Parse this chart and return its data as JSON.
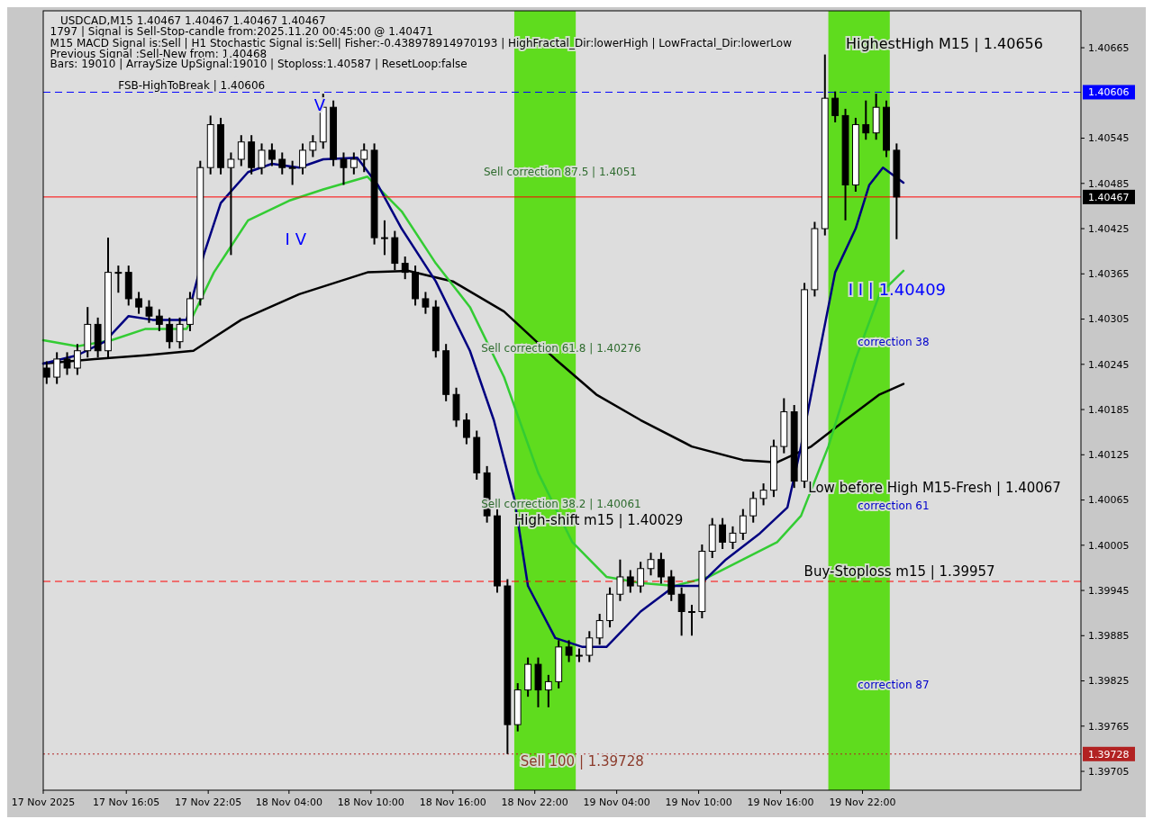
{
  "chart_data": {
    "type": "candlestick",
    "title": "USDCAD,M15  1.40467 1.40467 1.40467 1.40467",
    "color": "#000000",
    "x": [
      "2025-11-17T10:15",
      "2025-11-17T11:00",
      "2025-11-17T11:45",
      "2025-11-17T12:30",
      "2025-11-17T13:15",
      "2025-11-17T14:00",
      "2025-11-17T14:45",
      "2025-11-17T15:30",
      "2025-11-17T16:15",
      "2025-11-17T17:00",
      "2025-11-17T17:45",
      "2025-11-17T18:30",
      "2025-11-17T19:15",
      "2025-11-17T20:00",
      "2025-11-17T20:45",
      "2025-11-17T21:30",
      "2025-11-17T22:15",
      "2025-11-17T23:00",
      "2025-11-17T23:45",
      "2025-11-18T00:30",
      "2025-11-18T01:15",
      "2025-11-18T02:00",
      "2025-11-18T02:45",
      "2025-11-18T03:30",
      "2025-11-18T04:15",
      "2025-11-18T05:00",
      "2025-11-18T05:45",
      "2025-11-18T06:30",
      "2025-11-18T07:15",
      "2025-11-18T08:00",
      "2025-11-18T08:45",
      "2025-11-18T09:30",
      "2025-11-18T10:15",
      "2025-11-18T11:00",
      "2025-11-18T11:45",
      "2025-11-18T12:30",
      "2025-11-18T13:15",
      "2025-11-18T14:00",
      "2025-11-18T14:45",
      "2025-11-18T15:30",
      "2025-11-18T16:15",
      "2025-11-18T17:00",
      "2025-11-18T17:45",
      "2025-11-18T18:30",
      "2025-11-18T19:15",
      "2025-11-18T20:00",
      "2025-11-18T20:45",
      "2025-11-18T21:30",
      "2025-11-18T22:15",
      "2025-11-18T23:00",
      "2025-11-18T23:45",
      "2025-11-19T00:30",
      "2025-11-19T01:15",
      "2025-11-19T02:00",
      "2025-11-19T02:45",
      "2025-11-19T03:30",
      "2025-11-19T04:15",
      "2025-11-19T05:00",
      "2025-11-19T05:45",
      "2025-11-19T06:30",
      "2025-11-19T07:15",
      "2025-11-19T08:00",
      "2025-11-19T08:45",
      "2025-11-19T09:30",
      "2025-11-19T10:15",
      "2025-11-19T11:00",
      "2025-11-19T11:45",
      "2025-11-19T12:30",
      "2025-11-19T13:15",
      "2025-11-19T14:00",
      "2025-11-19T14:45",
      "2025-11-19T15:30",
      "2025-11-19T16:15",
      "2025-11-19T17:00",
      "2025-11-19T17:45",
      "2025-11-19T18:30",
      "2025-11-19T19:15",
      "2025-11-19T20:00",
      "2025-11-19T20:45",
      "2025-11-19T21:30",
      "2025-11-19T22:15",
      "2025-11-19T23:00",
      "2025-11-19T23:45",
      "2025-11-20T00:30"
    ],
    "ohlc": [
      [
        1.4024,
        1.40249,
        1.40219,
        1.40228
      ],
      [
        1.40228,
        1.40261,
        1.40219,
        1.40252
      ],
      [
        1.40252,
        1.40261,
        1.40231,
        1.4024
      ],
      [
        1.4024,
        1.40272,
        1.40231,
        1.40263
      ],
      [
        1.40263,
        1.40321,
        1.40254,
        1.40298
      ],
      [
        1.40298,
        1.40307,
        1.40254,
        1.40263
      ],
      [
        1.40263,
        1.40413,
        1.40254,
        1.40367
      ],
      [
        1.40367,
        1.40376,
        1.4034,
        1.40367
      ],
      [
        1.40367,
        1.40376,
        1.40323,
        1.40332
      ],
      [
        1.40332,
        1.40341,
        1.40312,
        1.40321
      ],
      [
        1.40321,
        1.4033,
        1.403,
        1.40309
      ],
      [
        1.40309,
        1.40318,
        1.40289,
        1.40298
      ],
      [
        1.40298,
        1.40307,
        1.40266,
        1.40275
      ],
      [
        1.40275,
        1.40307,
        1.40266,
        1.40298
      ],
      [
        1.40298,
        1.40341,
        1.40289,
        1.40332
      ],
      [
        1.40332,
        1.40515,
        1.40323,
        1.40506
      ],
      [
        1.40506,
        1.40575,
        1.40497,
        1.40563
      ],
      [
        1.40563,
        1.40572,
        1.40497,
        1.40506
      ],
      [
        1.40506,
        1.40526,
        1.4039,
        1.40517
      ],
      [
        1.40517,
        1.40549,
        1.40508,
        1.4054
      ],
      [
        1.4054,
        1.40549,
        1.40497,
        1.40506
      ],
      [
        1.40506,
        1.40538,
        1.40497,
        1.40529
      ],
      [
        1.40529,
        1.40538,
        1.40508,
        1.40517
      ],
      [
        1.40517,
        1.40526,
        1.40497,
        1.40506
      ],
      [
        1.40506,
        1.40515,
        1.40483,
        1.40506
      ],
      [
        1.40506,
        1.40538,
        1.40497,
        1.40529
      ],
      [
        1.40529,
        1.40549,
        1.4052,
        1.4054
      ],
      [
        1.4054,
        1.40604,
        1.40531,
        1.40586
      ],
      [
        1.40586,
        1.40595,
        1.40508,
        1.40517
      ],
      [
        1.40517,
        1.40526,
        1.40483,
        1.40506
      ],
      [
        1.40506,
        1.40526,
        1.40497,
        1.40517
      ],
      [
        1.40517,
        1.40538,
        1.405,
        1.40529
      ],
      [
        1.40529,
        1.40538,
        1.40404,
        1.40413
      ],
      [
        1.40413,
        1.40436,
        1.4039,
        1.40413
      ],
      [
        1.40413,
        1.40422,
        1.4037,
        1.40379
      ],
      [
        1.40379,
        1.40388,
        1.40358,
        1.40367
      ],
      [
        1.40367,
        1.40376,
        1.40323,
        1.40332
      ],
      [
        1.40332,
        1.40341,
        1.40312,
        1.40321
      ],
      [
        1.40321,
        1.4033,
        1.40254,
        1.40263
      ],
      [
        1.40263,
        1.40272,
        1.40196,
        1.40205
      ],
      [
        1.40205,
        1.40214,
        1.40162,
        1.40171
      ],
      [
        1.40171,
        1.4018,
        1.40139,
        1.40148
      ],
      [
        1.40148,
        1.40157,
        1.40092,
        1.40101
      ],
      [
        1.40101,
        1.4011,
        1.40035,
        1.40044
      ],
      [
        1.40044,
        1.40053,
        1.39942,
        1.39951
      ],
      [
        1.39951,
        1.3996,
        1.39728,
        1.39767
      ],
      [
        1.39767,
        1.39822,
        1.39758,
        1.39813
      ],
      [
        1.39813,
        1.39856,
        1.39804,
        1.39847
      ],
      [
        1.39847,
        1.39856,
        1.3979,
        1.39813
      ],
      [
        1.39813,
        1.39833,
        1.3979,
        1.39824
      ],
      [
        1.39824,
        1.39879,
        1.39815,
        1.3987
      ],
      [
        1.3987,
        1.39879,
        1.3985,
        1.39859
      ],
      [
        1.39859,
        1.39868,
        1.3985,
        1.39859
      ],
      [
        1.39859,
        1.39891,
        1.3985,
        1.39882
      ],
      [
        1.39882,
        1.39914,
        1.39873,
        1.39905
      ],
      [
        1.39905,
        1.39949,
        1.39896,
        1.3994
      ],
      [
        1.3994,
        1.39986,
        1.39931,
        1.39963
      ],
      [
        1.39963,
        1.39972,
        1.39942,
        1.39951
      ],
      [
        1.39951,
        1.39983,
        1.39942,
        1.39974
      ],
      [
        1.39974,
        1.39995,
        1.39965,
        1.39986
      ],
      [
        1.39986,
        1.39995,
        1.39954,
        1.39963
      ],
      [
        1.39963,
        1.39972,
        1.39931,
        1.3994
      ],
      [
        1.3994,
        1.39949,
        1.39885,
        1.39917
      ],
      [
        1.39917,
        1.39926,
        1.39885,
        1.39917
      ],
      [
        1.39917,
        1.40006,
        1.39908,
        1.39997
      ],
      [
        1.39997,
        1.40041,
        1.39988,
        1.40032
      ],
      [
        1.40032,
        1.40041,
        1.4,
        1.40009
      ],
      [
        1.40009,
        1.4003,
        1.4,
        1.40021
      ],
      [
        1.40021,
        1.40053,
        1.40012,
        1.40044
      ],
      [
        1.40044,
        1.40076,
        1.40035,
        1.40067
      ],
      [
        1.40067,
        1.40087,
        1.40058,
        1.40078
      ],
      [
        1.40078,
        1.40145,
        1.40069,
        1.40136
      ],
      [
        1.40136,
        1.402,
        1.40127,
        1.40182
      ],
      [
        1.40182,
        1.40191,
        1.40081,
        1.4009
      ],
      [
        1.4009,
        1.40353,
        1.40081,
        1.40344
      ],
      [
        1.40344,
        1.40434,
        1.40335,
        1.40425
      ],
      [
        1.40425,
        1.40656,
        1.40416,
        1.40598
      ],
      [
        1.40598,
        1.40607,
        1.40566,
        1.40575
      ],
      [
        1.40575,
        1.40584,
        1.40436,
        1.40483
      ],
      [
        1.40483,
        1.40572,
        1.40474,
        1.40563
      ],
      [
        1.40563,
        1.40595,
        1.40543,
        1.40552
      ],
      [
        1.40552,
        1.40604,
        1.40543,
        1.40586
      ],
      [
        1.40586,
        1.40595,
        1.4052,
        1.40529
      ],
      [
        1.40529,
        1.40538,
        1.40411,
        1.40467
      ]
    ],
    "series": [
      {
        "type": "line",
        "color": "#000000",
        "x": [
          "2025-11-17T10:00",
          "2025-11-17T13:45",
          "2025-11-17T17:30",
          "2025-11-17T21:00",
          "2025-11-18T00:30",
          "2025-11-18T04:45",
          "2025-11-18T09:45",
          "2025-11-18T12:45",
          "2025-11-18T16:00",
          "2025-11-18T19:45",
          "2025-11-18T23:30",
          "2025-11-19T02:30",
          "2025-11-19T05:45",
          "2025-11-19T09:30",
          "2025-11-19T13:15",
          "2025-11-19T15:45",
          "2025-11-19T18:15",
          "2025-11-19T20:45",
          "2025-11-19T23:15",
          "2025-11-20T01:00"
        ],
        "values": [
          1.40246,
          1.40252,
          1.40257,
          1.40263,
          1.40304,
          1.40338,
          1.40367,
          1.40369,
          1.40355,
          1.40315,
          1.40252,
          1.40205,
          1.40171,
          1.40136,
          1.40118,
          1.40115,
          1.40136,
          1.40171,
          1.40205,
          1.40219
        ]
      },
      {
        "type": "line",
        "color": "#33cc33",
        "x": [
          "2025-11-17T10:00",
          "2025-11-17T12:30",
          "2025-11-17T15:00",
          "2025-11-17T17:30",
          "2025-11-17T20:30",
          "2025-11-17T22:30",
          "2025-11-18T01:00",
          "2025-11-18T04:00",
          "2025-11-18T06:30",
          "2025-11-18T09:45",
          "2025-11-18T12:15",
          "2025-11-18T14:45",
          "2025-11-18T17:15",
          "2025-11-18T19:45",
          "2025-11-18T22:15",
          "2025-11-19T00:45",
          "2025-11-19T03:15",
          "2025-11-19T05:45",
          "2025-11-19T08:15",
          "2025-11-19T10:45",
          "2025-11-19T13:15",
          "2025-11-19T15:45",
          "2025-11-19T17:30",
          "2025-11-19T19:30",
          "2025-11-19T21:30",
          "2025-11-19T23:15",
          "2025-11-20T01:00"
        ],
        "values": [
          1.40277,
          1.40269,
          1.40277,
          1.40292,
          1.40292,
          1.40367,
          1.40436,
          1.40462,
          1.40477,
          1.40494,
          1.40448,
          1.40379,
          1.40321,
          1.40228,
          1.40101,
          1.40009,
          1.39963,
          1.39955,
          1.39951,
          1.39963,
          1.39986,
          1.40009,
          1.40044,
          1.40136,
          1.40252,
          1.40338,
          1.40369
        ]
      },
      {
        "type": "line",
        "color": "#000080",
        "x": [
          "2025-11-17T10:00",
          "2025-11-17T12:30",
          "2025-11-17T14:30",
          "2025-11-17T16:15",
          "2025-11-17T18:00",
          "2025-11-17T20:30",
          "2025-11-17T21:45",
          "2025-11-17T23:00",
          "2025-11-18T01:00",
          "2025-11-18T02:45",
          "2025-11-18T04:45",
          "2025-11-18T06:30",
          "2025-11-18T09:00",
          "2025-11-18T10:30",
          "2025-11-18T12:15",
          "2025-11-18T14:45",
          "2025-11-18T17:15",
          "2025-11-18T19:00",
          "2025-11-18T20:30",
          "2025-11-18T21:30",
          "2025-11-18T23:30",
          "2025-11-19T01:30",
          "2025-11-19T03:15",
          "2025-11-19T05:45",
          "2025-11-19T08:15",
          "2025-11-19T10:00",
          "2025-11-19T12:00",
          "2025-11-19T14:30",
          "2025-11-19T16:30",
          "2025-11-19T17:30",
          "2025-11-19T18:45",
          "2025-11-19T20:00",
          "2025-11-19T21:30",
          "2025-11-19T22:30",
          "2025-11-19T23:30",
          "2025-11-20T01:00"
        ],
        "values": [
          1.40246,
          1.40257,
          1.40275,
          1.40309,
          1.40304,
          1.40304,
          1.4039,
          1.40459,
          1.405,
          1.40511,
          1.40506,
          1.40517,
          1.40519,
          1.40483,
          1.40425,
          1.40355,
          1.40263,
          1.40171,
          1.40067,
          1.39951,
          1.39882,
          1.3987,
          1.3987,
          1.39917,
          1.39951,
          1.39951,
          1.39986,
          1.40021,
          1.40055,
          1.40136,
          1.40252,
          1.40367,
          1.40425,
          1.40483,
          1.40506,
          1.40486
        ]
      }
    ],
    "xlim": [
      "2025-11-17T10:00",
      "2025-11-20T14:00"
    ],
    "ylim": [
      1.3968,
      1.40714
    ],
    "xticks": [
      {
        "value": "2025-11-17T10:00",
        "label": "17 Nov 2025"
      },
      {
        "value": "2025-11-17T16:05",
        "label": "17 Nov 16:05"
      },
      {
        "value": "2025-11-17T22:05",
        "label": "17 Nov 22:05"
      },
      {
        "value": "2025-11-18T04:00",
        "label": "18 Nov 04:00"
      },
      {
        "value": "2025-11-18T10:00",
        "label": "18 Nov 10:00"
      },
      {
        "value": "2025-11-18T16:00",
        "label": "18 Nov 16:00"
      },
      {
        "value": "2025-11-18T22:00",
        "label": "18 Nov 22:00"
      },
      {
        "value": "2025-11-19T04:00",
        "label": "19 Nov 04:00"
      },
      {
        "value": "2025-11-19T10:00",
        "label": "19 Nov 10:00"
      },
      {
        "value": "2025-11-19T16:00",
        "label": "19 Nov 16:00"
      },
      {
        "value": "2025-11-19T22:00",
        "label": "19 Nov 22:00"
      }
    ],
    "yticks": [
      1.40665,
      1.40545,
      1.40485,
      1.40425,
      1.40365,
      1.40305,
      1.40245,
      1.40185,
      1.40125,
      1.40065,
      1.40005,
      1.39945,
      1.39885,
      1.39825,
      1.39765,
      1.39705
    ],
    "bands": [
      {
        "axis": "x",
        "from": "2025-11-18T20:30",
        "to": "2025-11-19T01:00",
        "color": "#5fdc1e"
      },
      {
        "axis": "x",
        "from": "2025-11-19T19:30",
        "to": "2025-11-20T00:00",
        "color": "#5fdc1e"
      }
    ],
    "ref_lines": [
      {
        "axis": "y",
        "value": 1.40606,
        "label": "1.40606",
        "color": "#0000ff",
        "line_style": "dashed"
      },
      {
        "axis": "y",
        "value": 1.40467,
        "label": "1.40467",
        "color": "#ff0000",
        "line_style": "solid"
      },
      {
        "axis": "y",
        "value": 1.39957,
        "color": "#ff0000",
        "line_style": "dashed"
      },
      {
        "axis": "y",
        "value": 1.39728,
        "label": "1.39728",
        "color": "#b22222",
        "line_style": "dotted"
      }
    ],
    "annotations": [
      "1797 | Signal is Sell-Stop-candle from:2025.11.20 00:45:00 @ 1.40471",
      "M15 MACD Signal is:Sell | H1 Stochastic Signal is:Sell| Fisher:-0.438978914970193 | HighFractal_Dir:lowerHigh | LowFractal_Dir:lowerLow",
      "Previous Signal :Sell-New from: 1.40468",
      "Bars: 19010 | ArraySize UpSignal:19010 | Stoploss:1.40587 | ResetLoop:false",
      "FSB-HighToBreak | 1.40606",
      "Sell correction 87.5 | 1.4051",
      "Sell correction 61.8 | 1.40276",
      "Sell correction 38.2 | 1.40061",
      "High-shift m15 | 1.40029",
      "Sell 100 | 1.39728",
      "HighestHigh    M15 | 1.40656",
      "I I | 1.40409",
      "correction 38",
      "Low before High    M15-Fresh | 1.40067",
      "correction 61",
      "Buy-Stoploss m15 | 1.39957",
      "correction 87",
      "I V",
      "V"
    ]
  }
}
